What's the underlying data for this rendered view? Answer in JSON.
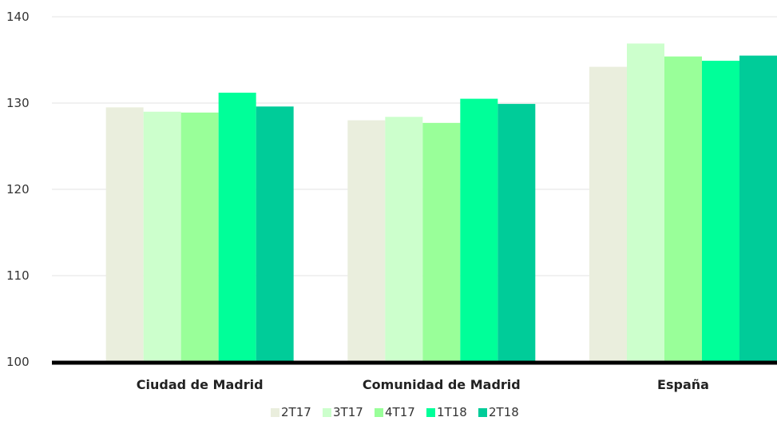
{
  "chart_data": {
    "type": "bar",
    "title": "",
    "xlabel": "",
    "ylabel": "",
    "categories": [
      "Ciudad de Madrid",
      "Comunidad de Madrid",
      "España"
    ],
    "ylim": [
      100,
      140
    ],
    "yticks": [
      100,
      110,
      120,
      130,
      140
    ],
    "grid": true,
    "legend_position": "bottom",
    "series": [
      {
        "name": "2T17",
        "color": "#eaeedd",
        "values": [
          129.5,
          128.0,
          134.2
        ]
      },
      {
        "name": "3T17",
        "color": "#ccffcc",
        "values": [
          129.0,
          128.4,
          136.9
        ]
      },
      {
        "name": "4T17",
        "color": "#99ff99",
        "values": [
          128.9,
          127.7,
          135.4
        ]
      },
      {
        "name": "1T18",
        "color": "#00ff99",
        "values": [
          131.2,
          130.5,
          134.9
        ]
      },
      {
        "name": "2T18",
        "color": "#00cc99",
        "values": [
          129.6,
          129.9,
          135.5
        ]
      }
    ]
  }
}
